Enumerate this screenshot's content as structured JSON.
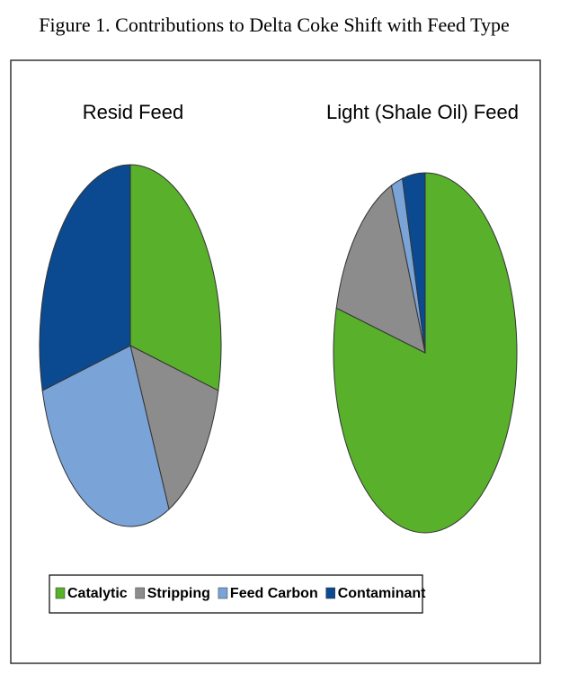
{
  "title": "Figure 1. Contributions to Delta Coke Shift with Feed Type",
  "chart_data": [
    {
      "type": "pie",
      "title": "Resid Feed",
      "categories": [
        "Catalytic",
        "Stripping",
        "Feed Carbon",
        "Contaminant"
      ],
      "values": [
        29,
        14,
        28,
        29
      ],
      "colors": [
        "#58b02b",
        "#8c8c8c",
        "#7aa3d8",
        "#0b4a91"
      ]
    },
    {
      "type": "pie",
      "title": "Light (Shale Oil) Feed",
      "categories": [
        "Catalytic",
        "Stripping",
        "Feed Carbon",
        "Contaminant"
      ],
      "values": [
        79,
        15,
        2,
        4
      ],
      "colors": [
        "#58b02b",
        "#8c8c8c",
        "#7aa3d8",
        "#0b4a91"
      ]
    }
  ]
}
